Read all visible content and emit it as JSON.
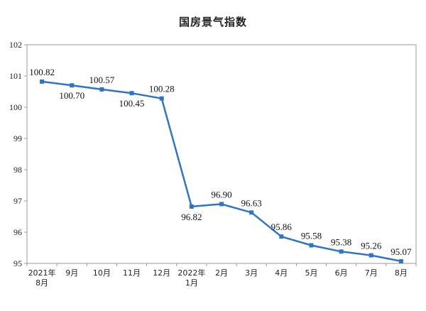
{
  "chart_data": {
    "type": "line",
    "title": "国房景气指数",
    "xlabel": "",
    "ylabel": "",
    "ylim": [
      95,
      102
    ],
    "yticks": [
      95,
      96,
      97,
      98,
      99,
      100,
      101,
      102
    ],
    "categories": [
      [
        "2021年",
        "8月"
      ],
      [
        "9月"
      ],
      [
        "10月"
      ],
      [
        "11月"
      ],
      [
        "12月"
      ],
      [
        "2022年",
        "1月"
      ],
      [
        "2月"
      ],
      [
        "3月"
      ],
      [
        "4月"
      ],
      [
        "5月"
      ],
      [
        "6月"
      ],
      [
        "7月"
      ],
      [
        "8月"
      ]
    ],
    "series": [
      {
        "values": [
          100.82,
          100.7,
          100.57,
          100.45,
          100.28,
          96.82,
          96.9,
          96.63,
          95.86,
          95.58,
          95.38,
          95.26,
          95.07
        ],
        "labels": [
          "100.82",
          "100.70",
          "100.57",
          "100.45",
          "100.28",
          "96.82",
          "96.90",
          "96.63",
          "95.86",
          "95.58",
          "95.38",
          "95.26",
          "95.07"
        ],
        "color": "#2e75c8"
      }
    ],
    "grid": false,
    "legend": "none"
  }
}
